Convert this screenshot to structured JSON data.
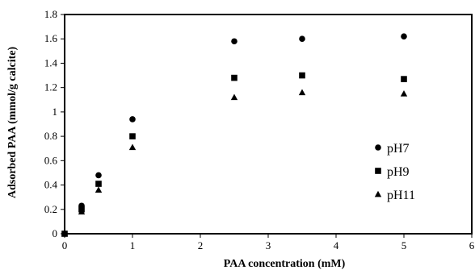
{
  "chart_data": {
    "type": "scatter",
    "title": "",
    "xlabel": "PAA concentration (mM)",
    "ylabel": "Adsorbed PAA (mmol/g calcite)",
    "xlim": [
      0,
      6
    ],
    "ylim": [
      0,
      1.8
    ],
    "x_ticks": [
      "0",
      "1",
      "2",
      "3",
      "4",
      "5",
      "6"
    ],
    "y_ticks": [
      "0",
      "0.2",
      "0.4",
      "0.6",
      "0.8",
      "1",
      "1.2",
      "1.4",
      "1.6",
      "1.8"
    ],
    "grid": false,
    "legend_position": "right",
    "series": [
      {
        "name": "pH7",
        "marker": "circle",
        "x": [
          0,
          0.25,
          0.5,
          1,
          2.5,
          3.5,
          5
        ],
        "y": [
          0,
          0.23,
          0.48,
          0.94,
          1.58,
          1.6,
          1.62
        ]
      },
      {
        "name": "pH9",
        "marker": "square",
        "x": [
          0,
          0.25,
          0.5,
          1,
          2.5,
          3.5,
          5
        ],
        "y": [
          0,
          0.2,
          0.41,
          0.8,
          1.28,
          1.3,
          1.27
        ]
      },
      {
        "name": "pH11",
        "marker": "triangle",
        "x": [
          0,
          0.25,
          0.5,
          1,
          2.5,
          3.5,
          5
        ],
        "y": [
          0,
          0.18,
          0.36,
          0.71,
          1.12,
          1.16,
          1.15
        ]
      }
    ]
  }
}
